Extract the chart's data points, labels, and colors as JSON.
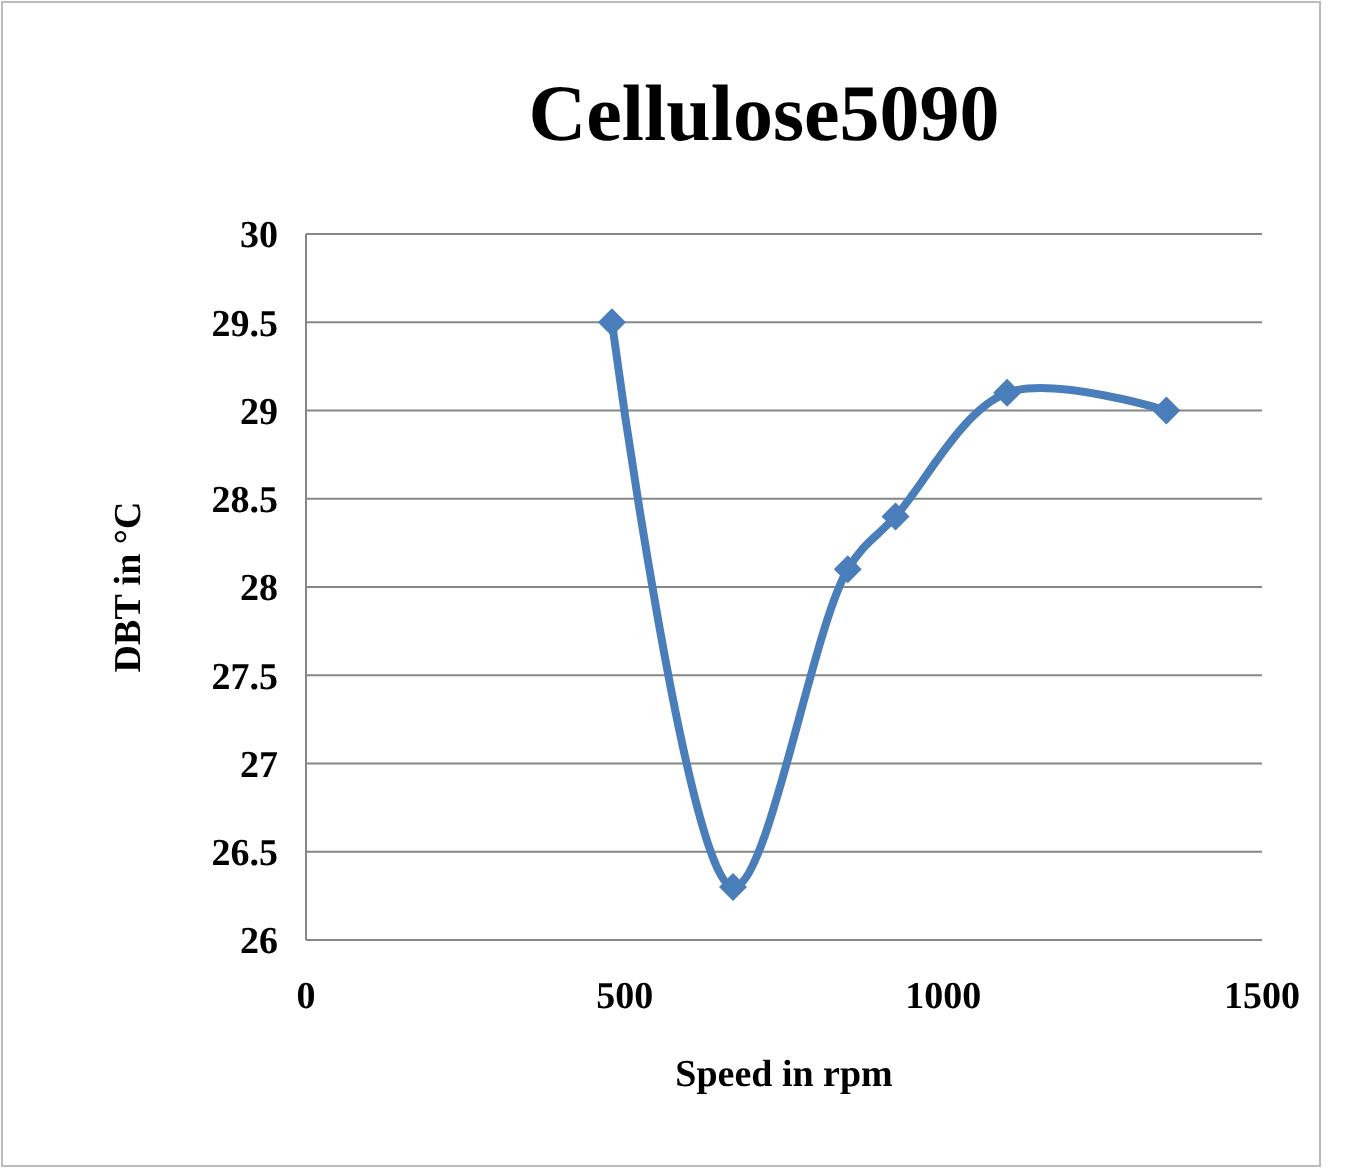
{
  "chart_data": {
    "type": "line",
    "title": "Cellulose5090",
    "xlabel": "Speed in rpm",
    "ylabel": "DBT in °C",
    "series": [
      {
        "color": "#4a7ebb",
        "x": [
          480,
          670,
          850,
          925,
          1100,
          1350
        ],
        "values": [
          29.5,
          26.3,
          28.1,
          28.4,
          29.1,
          29.0
        ]
      }
    ],
    "xlim": [
      0,
      1500
    ],
    "xticks": [
      0,
      500,
      1000,
      1500
    ],
    "ylim": [
      26,
      30
    ],
    "yticks": [
      26,
      26.5,
      27,
      27.5,
      28,
      28.5,
      29,
      29.5,
      30
    ],
    "grid": "y",
    "marker": "diamond",
    "line_style": "solid"
  }
}
